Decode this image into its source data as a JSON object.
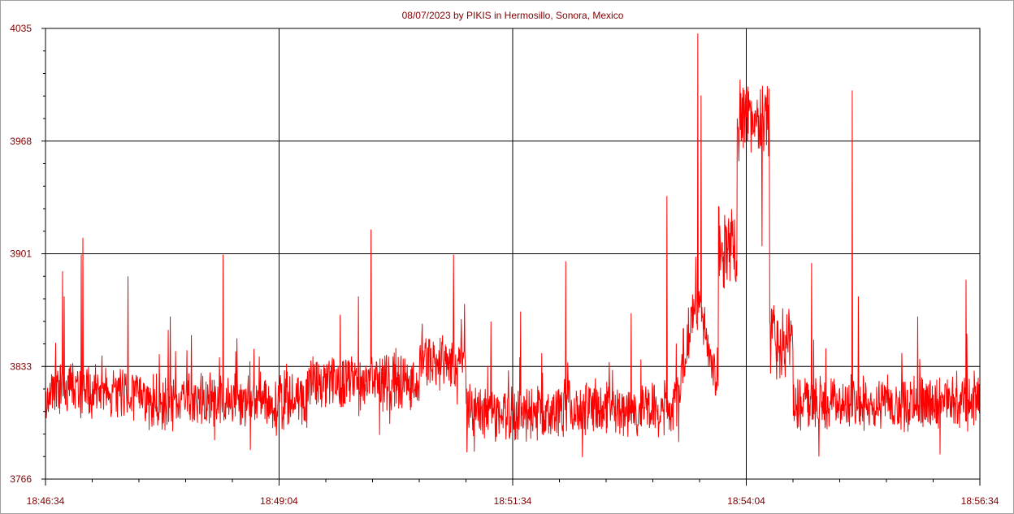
{
  "chart_data": {
    "type": "line",
    "title": "08/07/2023  by  PIKIS  in  Hermosillo, Sonora, Mexico",
    "xlabel": "",
    "ylabel": "",
    "x_tick_labels": [
      "18:46:34",
      "18:49:04",
      "18:51:34",
      "18:54:04",
      "18:56:34"
    ],
    "x_range": [
      "18:46:34",
      "18:56:34"
    ],
    "y_tick_labels": [
      "4035",
      "3968",
      "3901",
      "3833",
      "3766"
    ],
    "ylim": [
      3766,
      4035
    ],
    "grid": true,
    "colors": {
      "series": "#ff0000",
      "text": "#800000",
      "grid": "#000000",
      "background": "#ffffff"
    },
    "series_shape": {
      "baseline_segments": [
        {
          "from": 0.0,
          "to": 0.1,
          "value": 3818
        },
        {
          "from": 0.1,
          "to": 0.28,
          "value": 3813
        },
        {
          "from": 0.28,
          "to": 0.4,
          "value": 3824
        },
        {
          "from": 0.4,
          "to": 0.45,
          "value": 3835
        },
        {
          "from": 0.45,
          "to": 0.55,
          "value": 3805
        },
        {
          "from": 0.55,
          "to": 0.68,
          "value": 3808
        },
        {
          "from": 0.68,
          "to": 0.72,
          "value": 3825
        },
        {
          "from": 0.72,
          "to": 0.74,
          "value": 3905
        },
        {
          "from": 0.74,
          "to": 0.775,
          "value": 3980
        },
        {
          "from": 0.775,
          "to": 0.8,
          "value": 3850
        },
        {
          "from": 0.8,
          "to": 1.0,
          "value": 3812
        }
      ],
      "peak": {
        "time": "18:53:33",
        "value": 4032
      },
      "spikes": [
        {
          "time": "18:46:45",
          "value": 3890
        },
        {
          "time": "18:46:46",
          "value": 3875
        },
        {
          "time": "18:46:57",
          "value": 3900
        },
        {
          "time": "18:46:58",
          "value": 3910
        },
        {
          "time": "18:47:27",
          "value": 3887
        },
        {
          "time": "18:47:54",
          "value": 3863
        },
        {
          "time": "18:48:28",
          "value": 3900
        },
        {
          "time": "18:48:37",
          "value": 3850
        },
        {
          "time": "18:49:55",
          "value": 3875
        },
        {
          "time": "18:50:03",
          "value": 3915
        },
        {
          "time": "18:50:56",
          "value": 3900
        },
        {
          "time": "18:51:20",
          "value": 3860
        },
        {
          "time": "18:51:39",
          "value": 3866
        },
        {
          "time": "18:52:08",
          "value": 3896
        },
        {
          "time": "18:52:50",
          "value": 3865
        },
        {
          "time": "18:53:13",
          "value": 3935
        },
        {
          "time": "18:53:35",
          "value": 3995
        },
        {
          "time": "18:54:14",
          "value": 3905
        },
        {
          "time": "18:54:46",
          "value": 3895
        },
        {
          "time": "18:55:12",
          "value": 3998
        },
        {
          "time": "18:55:16",
          "value": 3875
        },
        {
          "time": "18:55:54",
          "value": 3863
        },
        {
          "time": "18:56:25",
          "value": 3885
        }
      ]
    }
  }
}
